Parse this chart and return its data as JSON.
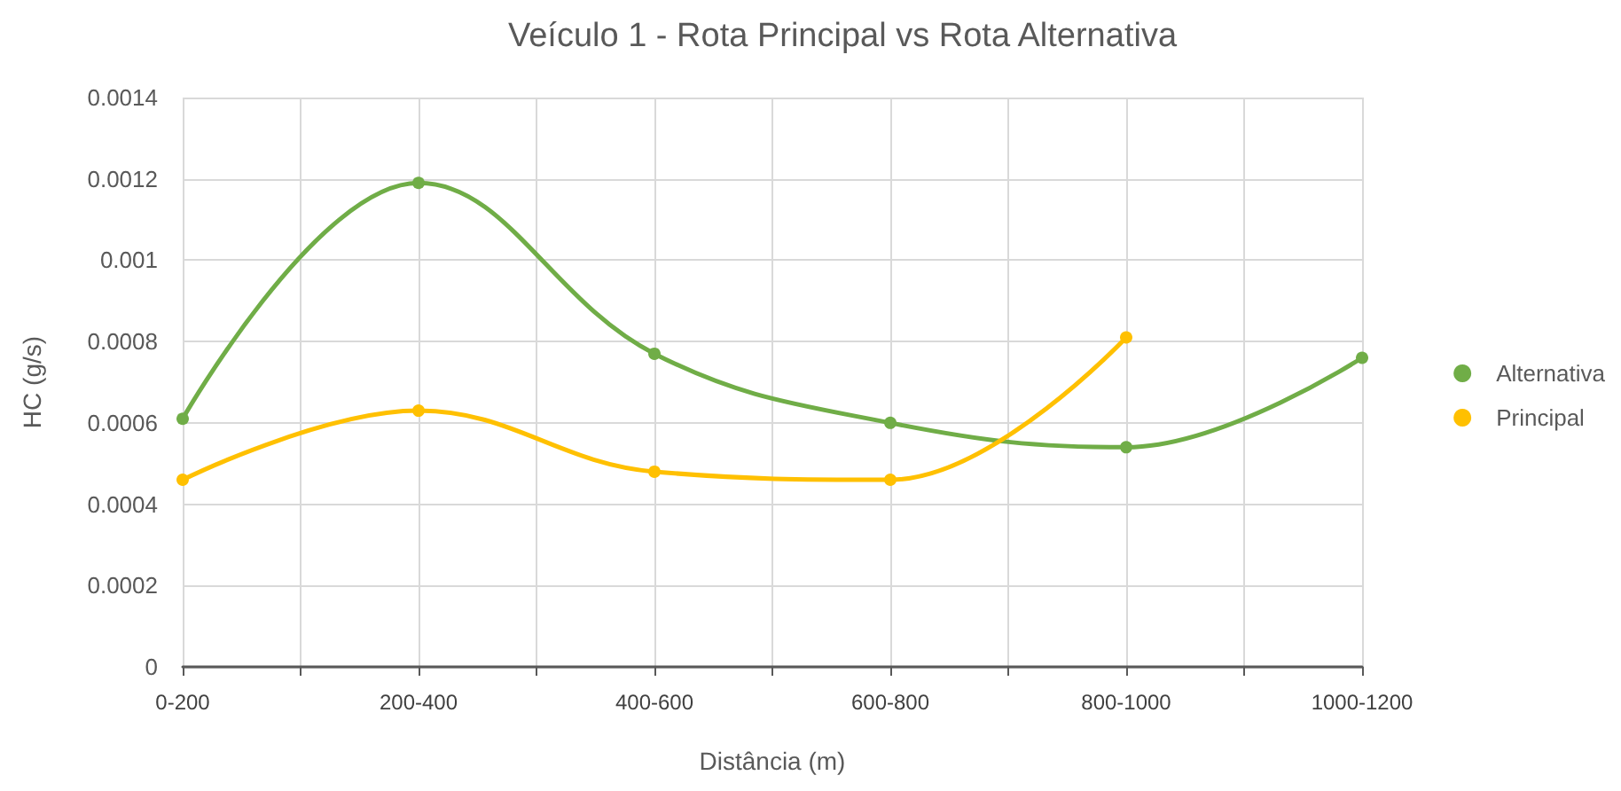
{
  "chart_data": {
    "type": "line",
    "title": "Veículo 1 - Rota Principal vs Rota Alternativa",
    "xlabel": "Distância (m)",
    "ylabel": "HC (g/s)",
    "categories": [
      "0-200",
      "200-400",
      "400-600",
      "600-800",
      "800-1000",
      "1000-1200"
    ],
    "series": [
      {
        "name": "Alternativa",
        "color": "#70ad47",
        "values": [
          0.00061,
          0.00119,
          0.00077,
          0.0006,
          0.00054,
          0.00076
        ]
      },
      {
        "name": "Principal",
        "color": "#ffc000",
        "values": [
          0.00046,
          0.00063,
          0.00048,
          0.00046,
          0.00081,
          null
        ]
      }
    ],
    "ylim": [
      0,
      0.0014
    ],
    "yticks": [
      0,
      0.0002,
      0.0004,
      0.0006,
      0.0008,
      0.001,
      0.0012,
      0.0014
    ],
    "grid": true,
    "legend": "right",
    "marker": "circle",
    "line_style": "solid"
  }
}
